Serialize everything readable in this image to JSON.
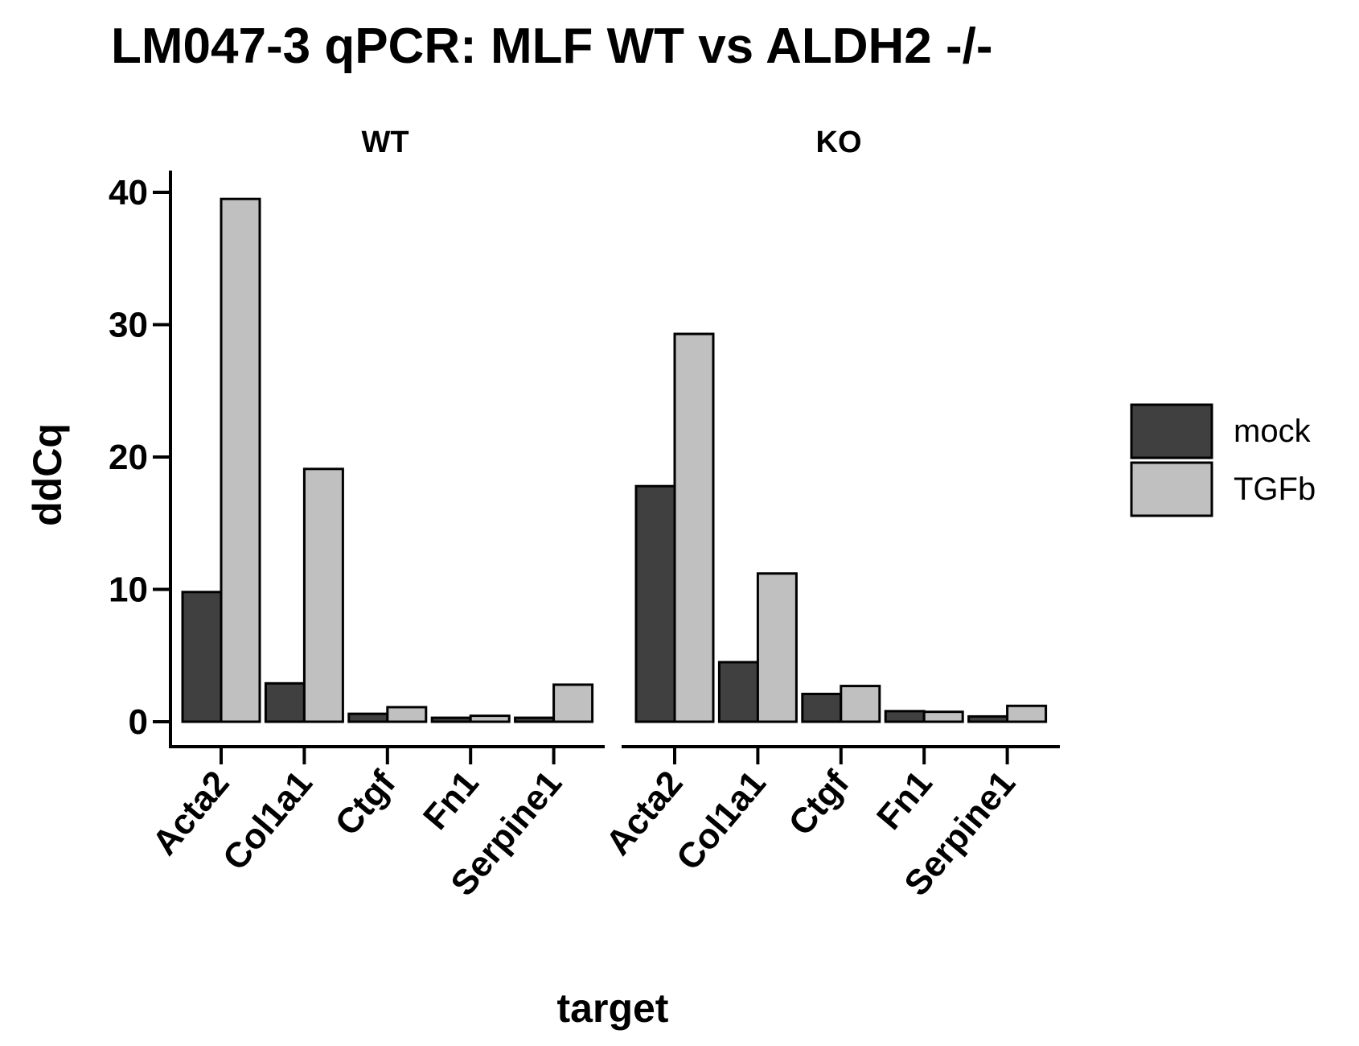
{
  "chart_data": {
    "type": "bar",
    "title": "LM047-3 qPCR: MLF WT vs ALDH2 -/-",
    "xlabel": "target",
    "ylabel": "ddCq",
    "ylim": [
      0,
      41.5
    ],
    "yticks": [
      0,
      10,
      20,
      30,
      40
    ],
    "grid": false,
    "legend_position": "right",
    "categories": [
      "Acta2",
      "Col1a1",
      "Ctgf",
      "Fn1",
      "Serpine1"
    ],
    "panels": [
      {
        "name": "WT",
        "series": [
          {
            "name": "mock",
            "values": [
              9.8,
              2.9,
              0.6,
              0.3,
              0.3
            ]
          },
          {
            "name": "TGFb",
            "values": [
              39.5,
              19.1,
              1.1,
              0.45,
              2.8
            ]
          }
        ]
      },
      {
        "name": "KO",
        "series": [
          {
            "name": "mock",
            "values": [
              17.8,
              4.5,
              2.1,
              0.8,
              0.4
            ]
          },
          {
            "name": "TGFb",
            "values": [
              29.3,
              11.2,
              2.7,
              0.75,
              1.2
            ]
          }
        ]
      }
    ],
    "colors": {
      "mock": "#404040",
      "TGFb": "#c0c0c0",
      "outline": "#000000"
    }
  }
}
